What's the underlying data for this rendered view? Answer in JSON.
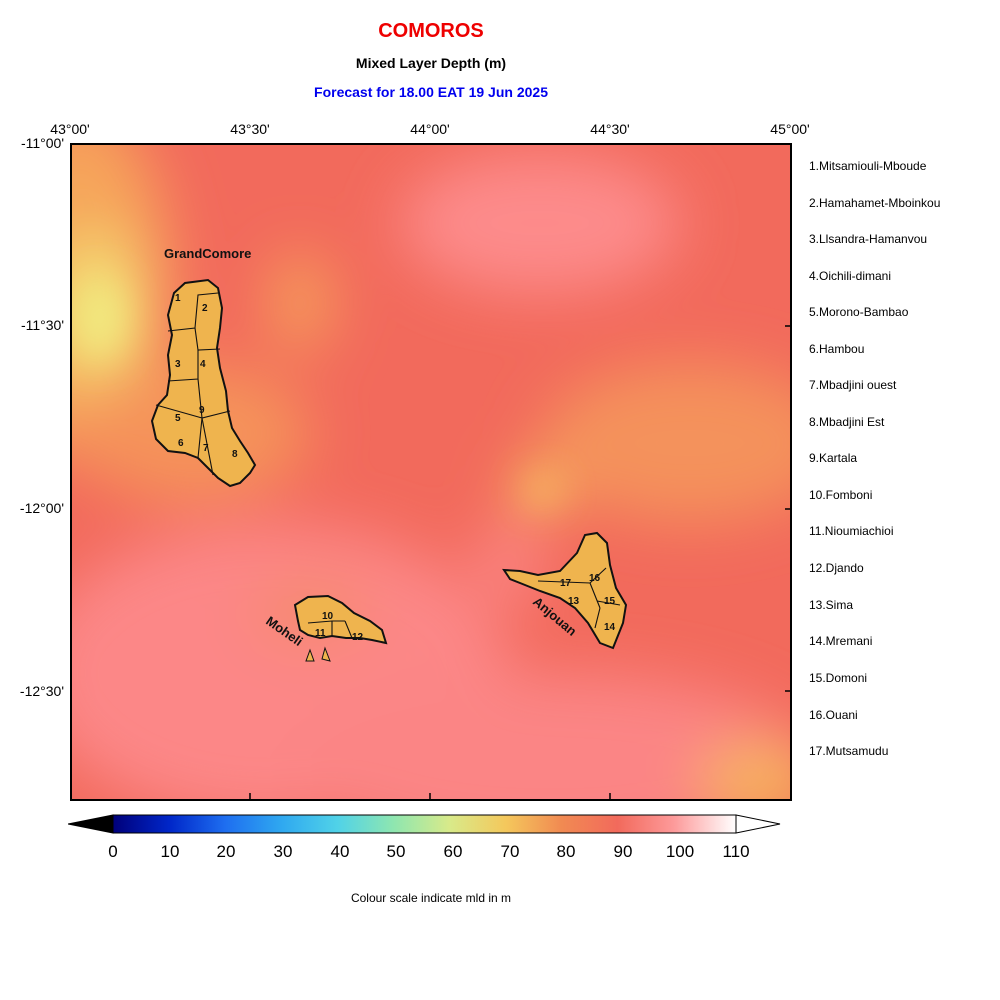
{
  "header": {
    "title": "COMOROS",
    "subtitle": "Mixed Layer Depth (m)",
    "forecast": "Forecast for  18.00 EAT 19 Jun 2025"
  },
  "axes": {
    "x_ticks": [
      "43°00'",
      "43°30'",
      "44°00'",
      "44°30'",
      "45°00'"
    ],
    "y_ticks": [
      "-11°00'",
      "-11°30'",
      "-12°00'",
      "-12°30'"
    ]
  },
  "islands": {
    "grand_comore": "GrandComore",
    "moheli": "Moheli",
    "anjouan": "Anjouan"
  },
  "district_numbers": [
    "1",
    "2",
    "3",
    "4",
    "5",
    "6",
    "7",
    "8",
    "9",
    "10",
    "11",
    "12",
    "13",
    "14",
    "15",
    "16",
    "17"
  ],
  "legend": [
    "1.Mitsamiouli-Mboude",
    "2.Hamahamet-Mboinkou",
    "3.Llsandra-Hamanvou",
    "4.Oichili-dimani",
    "5.Morono-Bambao",
    "6.Hambou",
    "7.Mbadjini ouest",
    "8.Mbadjini Est",
    "9.Kartala",
    "10.Fomboni",
    "11.Nioumiachioi",
    "12.Djando",
    "13.Sima",
    "14.Mremani",
    "15.Domoni",
    "16.Ouani",
    "17.Mutsamudu"
  ],
  "colorbar": {
    "ticks": [
      "0",
      "10",
      "20",
      "30",
      "40",
      "50",
      "60",
      "70",
      "80",
      "90",
      "100",
      "110"
    ],
    "caption": "Colour scale indicate mld in m",
    "range_m": [
      0,
      110
    ]
  },
  "colors": {
    "land": "#efb44e",
    "field_dominant": "#f26a5c",
    "field_low": "#f7c05c",
    "field_high": "#fe8a8a"
  }
}
